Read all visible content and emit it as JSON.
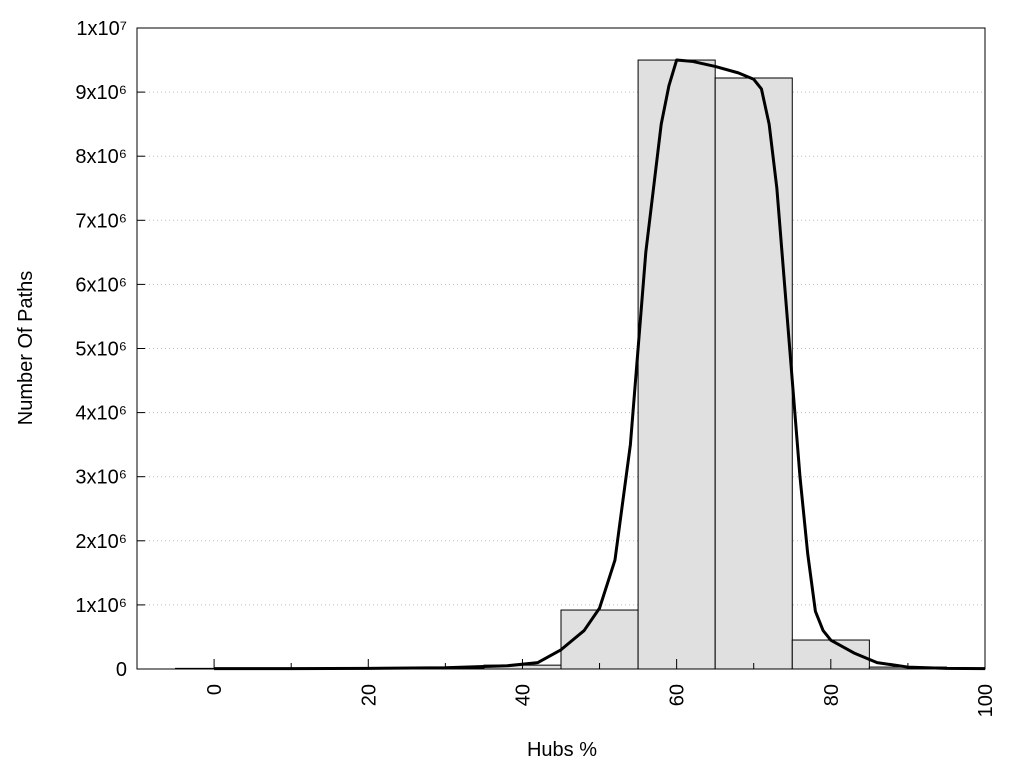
{
  "chart_data": [
    {
      "type": "histogram",
      "xlabel": "Hubs %",
      "ylabel": "Number Of Paths",
      "bins": [
        -5,
        5,
        15,
        25,
        35,
        45,
        55,
        65,
        75,
        85,
        95
      ],
      "counts": [
        10000,
        5000,
        5000,
        10000,
        60000,
        920000,
        9500000,
        9220000,
        452000,
        30000
      ],
      "color": "#e0e0e0",
      "edgecolor": "#000000",
      "xlim": [
        -10,
        100
      ],
      "ylim": [
        0,
        10000000
      ],
      "xticks": [
        0,
        20,
        40,
        60,
        80,
        100
      ],
      "xminor_ticks": [
        10,
        30,
        50,
        70,
        90
      ],
      "yticks": [
        0,
        {
          "value": 1000000,
          "label": "1x10⁶"
        },
        {
          "value": 2000000,
          "label": "2x10⁶"
        },
        {
          "value": 3000000,
          "label": "3x10⁶"
        },
        {
          "value": 4000000,
          "label": "4x10⁶"
        },
        {
          "value": 5000000,
          "label": "5x10⁶"
        },
        {
          "value": 6000000,
          "label": "6x10⁶"
        },
        {
          "value": 7000000,
          "label": "7x10⁶"
        },
        {
          "value": 8000000,
          "label": "8x10⁶"
        },
        {
          "value": 9000000,
          "label": "9x10⁶"
        },
        {
          "value": 10000000,
          "label": "1x10⁷"
        }
      ],
      "grid": true
    },
    {
      "type": "line",
      "color": "#000000",
      "x": [
        0,
        10,
        20,
        30,
        38,
        42,
        45,
        48,
        50,
        52,
        54,
        55,
        56,
        57,
        58,
        59,
        60,
        62,
        65,
        68,
        70,
        71,
        72,
        73,
        74,
        75,
        76,
        77,
        78,
        79,
        80,
        83,
        86,
        90,
        95,
        100
      ],
      "values": [
        5000,
        5000,
        10000,
        20000,
        50000,
        100000,
        300000,
        600000,
        950000,
        1700000,
        3500000,
        5000000,
        6500000,
        7500000,
        8500000,
        9100000,
        9500000,
        9480000,
        9400000,
        9300000,
        9200000,
        9050000,
        8500000,
        7500000,
        6000000,
        4500000,
        3000000,
        1800000,
        900000,
        600000,
        450000,
        250000,
        100000,
        30000,
        10000,
        5000
      ]
    }
  ]
}
